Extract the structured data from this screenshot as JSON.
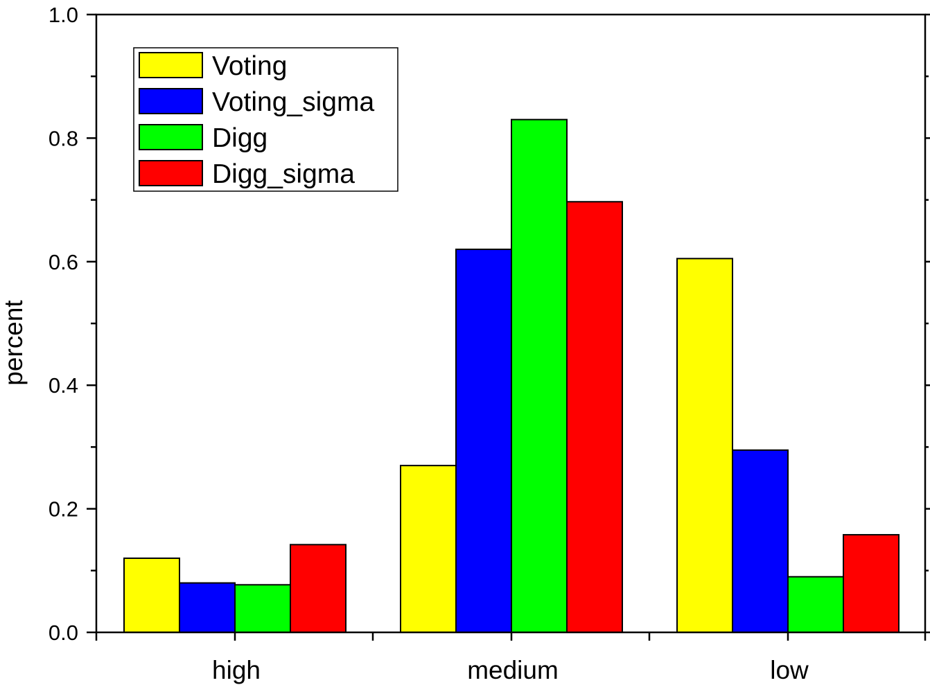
{
  "chart_data": {
    "type": "bar",
    "categories": [
      "high",
      "medium",
      "low"
    ],
    "series": [
      {
        "name": "Voting",
        "color": "#ffff00",
        "values": [
          0.12,
          0.27,
          0.605
        ]
      },
      {
        "name": "Voting_sigma",
        "color": "#0000ff",
        "values": [
          0.08,
          0.62,
          0.295
        ]
      },
      {
        "name": "Digg",
        "color": "#00ff00",
        "values": [
          0.077,
          0.83,
          0.09
        ]
      },
      {
        "name": "Digg_sigma",
        "color": "#ff0000",
        "values": [
          0.142,
          0.697,
          0.158
        ]
      }
    ],
    "title": "",
    "xlabel": "",
    "ylabel": "percent",
    "ylim": [
      0,
      1.0
    ],
    "yticks": [
      0.0,
      0.2,
      0.4,
      0.6,
      0.8,
      1.0
    ],
    "ytick_labels": [
      "0.0",
      "0.2",
      "0.4",
      "0.6",
      "0.8",
      "1.0"
    ],
    "legend_position": "top-left",
    "grid": false
  }
}
